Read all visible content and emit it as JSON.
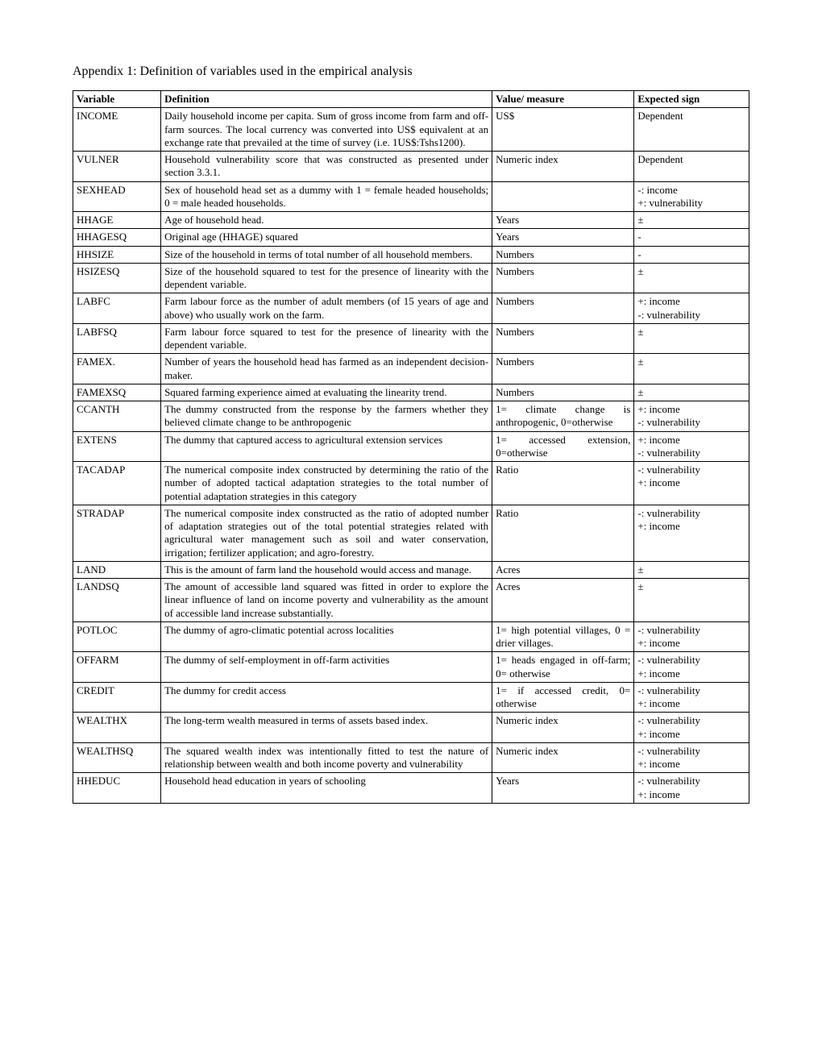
{
  "title": "Appendix 1: Definition of variables used in the empirical analysis",
  "headers": {
    "variable": "Variable",
    "definition": "Definition",
    "value": "Value/ measure",
    "expected": "Expected sign"
  },
  "rows": [
    {
      "variable": "INCOME",
      "definition": "Daily household income per capita. Sum of gross income from farm and off-farm sources. The local currency was converted into US$ equivalent at an exchange rate that prevailed at the time of survey (i.e. 1US$:Tshs1200).",
      "value": "US$",
      "expected": "Dependent"
    },
    {
      "variable": "VULNER",
      "definition": "Household vulnerability score that was constructed as presented under section 3.3.1.",
      "value": "Numeric index",
      "expected": "Dependent"
    },
    {
      "variable": "SEXHEAD",
      "definition": "Sex of household head set as a dummy with 1 = female headed households; 0 = male headed households.",
      "value": "",
      "expected": "-: income\n+: vulnerability"
    },
    {
      "variable": "HHAGE",
      "definition": "Age of household head.",
      "value": "Years",
      "expected": "±"
    },
    {
      "variable": "HHAGESQ",
      "definition": "Original age (HHAGE) squared",
      "value": "Years",
      "expected": "-"
    },
    {
      "variable": "HHSIZE",
      "definition": "Size of the household in terms of total number of all household members.",
      "value": "Numbers",
      "expected": "-"
    },
    {
      "variable": "HSIZESQ",
      "definition": "Size of the household squared to test for the presence of linearity with the dependent variable.",
      "value": "Numbers",
      "expected": "±"
    },
    {
      "variable": "LABFC",
      "definition": "Farm labour force as the number of adult members (of 15 years of age and above) who usually work on the farm.",
      "value": "Numbers",
      "expected": "+: income\n-: vulnerability"
    },
    {
      "variable": "LABFSQ",
      "definition": "Farm labour force squared to test for the presence of linearity with the dependent variable.",
      "value": "Numbers",
      "expected": "±"
    },
    {
      "variable": "FAMEX.",
      "definition": "Number of years the household head has farmed as an independent decision-maker.",
      "value": "Numbers",
      "expected": "±"
    },
    {
      "variable": "FAMEXSQ",
      "definition": "Squared farming experience aimed at evaluating the linearity trend.",
      "value": "Numbers",
      "expected": "±"
    },
    {
      "variable": "CCANTH",
      "definition": "The dummy constructed from the response by the farmers whether they believed climate change to be anthropogenic",
      "value": "1= climate change is anthropogenic, 0=otherwise",
      "expected": "+: income\n-: vulnerability"
    },
    {
      "variable": "EXTENS",
      "definition": "The dummy that captured access to agricultural extension services",
      "value": "1= accessed extension, 0=otherwise",
      "expected": "+: income\n-: vulnerability"
    },
    {
      "variable": "TACADAP",
      "definition": "The numerical composite index constructed by determining the ratio of the number of adopted tactical adaptation strategies to the total number of potential adaptation strategies in this category",
      "value": "Ratio",
      "expected": "-: vulnerability\n+: income"
    },
    {
      "variable": "STRADAP",
      "definition": "The numerical composite index constructed as the ratio of adopted number of adaptation strategies out of the total potential strategies related with agricultural water management such as soil and water conservation, irrigation; fertilizer application; and agro-forestry.",
      "value": "Ratio",
      "expected": "-: vulnerability\n+: income"
    },
    {
      "variable": "LAND",
      "definition": "This is the amount of farm land the household would access and manage.",
      "value": "Acres",
      "expected": "±"
    },
    {
      "variable": "LANDSQ",
      "definition": "The amount of accessible land squared was fitted in order to explore the linear influence of land on income poverty and vulnerability as the amount of accessible land increase substantially.",
      "value": "Acres",
      "expected": "±"
    },
    {
      "variable": "POTLOC",
      "definition": "The dummy of agro-climatic potential across localities",
      "value": "1= high potential villages, 0 = drier villages.",
      "expected": "-: vulnerability\n+: income"
    },
    {
      "variable": "OFFARM",
      "definition": "The dummy of self-employment in off-farm activities",
      "value": "1= heads engaged in off-farm; 0= otherwise",
      "expected": "-: vulnerability\n+: income"
    },
    {
      "variable": "CREDIT",
      "definition": "The dummy for credit access",
      "value": "1= if accessed credit, 0= otherwise",
      "expected": "-: vulnerability\n+: income"
    },
    {
      "variable": "WEALTHX",
      "definition": "The long-term wealth measured in terms of assets based index.",
      "value": "Numeric index",
      "expected": "-: vulnerability\n+: income"
    },
    {
      "variable": "WEALTHSQ",
      "definition": "The squared wealth index was intentionally fitted to test the nature of relationship between wealth and both income poverty and vulnerability",
      "value": "Numeric index",
      "expected": "-: vulnerability\n+: income"
    },
    {
      "variable": "HHEDUC",
      "definition": "Household head education in years of schooling",
      "value": "Years",
      "expected": "-: vulnerability\n+: income"
    }
  ]
}
